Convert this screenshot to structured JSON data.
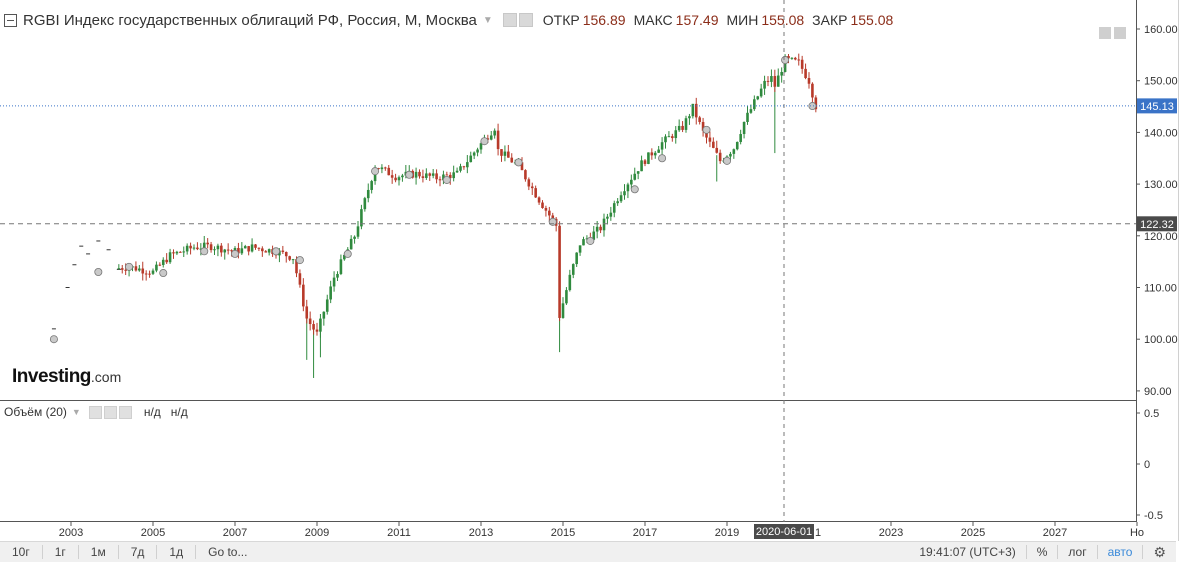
{
  "legend": {
    "title": "RGBI Индекс государственных облигаций РФ, Россия, M, Москва",
    "open_label": "ОТКР",
    "open_value": "156.89",
    "high_label": "МАКС",
    "high_value": "157.49",
    "low_label": "МИН",
    "low_value": "155.08",
    "close_label": "ЗАКР",
    "close_value": "155.08"
  },
  "volume_legend": {
    "title": "Объём (20)",
    "value1": "н/д",
    "value2": "н/д"
  },
  "brand": {
    "name": "Investing",
    "domain": ".com"
  },
  "toolbar": {
    "ranges": [
      "10г",
      "1г",
      "1м",
      "7д",
      "1д"
    ],
    "goto": "Go to...",
    "clock": "19:41:07 (UTC+3)",
    "percent": "%",
    "log": "лог",
    "auto": "авто"
  },
  "colors": {
    "up": "#2f8a3e",
    "down": "#b83a2a",
    "current_line": "#3a73c7",
    "text": "#333333"
  },
  "chart_data": {
    "type": "candlestick",
    "x_ticks": [
      "2003",
      "2005",
      "2007",
      "2009",
      "2011",
      "2013",
      "2015",
      "2017",
      "2019",
      "2021",
      "2023",
      "2025",
      "2027",
      "Но"
    ],
    "y_ticks": [
      "160.00",
      "150.00",
      "140.00",
      "130.00",
      "120.00",
      "110.00",
      "100.00",
      "90.00"
    ],
    "ylim": [
      87,
      162
    ],
    "volume_ticks": [
      "0.5",
      "0",
      "-0.5"
    ],
    "current_price_label": "145.13",
    "crosshair_price_label": "122.32",
    "crosshair_date_label": "2020-06-01",
    "anchors": [
      [
        "2002-08",
        100.0
      ],
      [
        "2002-12",
        103.2
      ],
      [
        "2003-06",
        112.8
      ],
      [
        "2003-12",
        113.5
      ],
      [
        "2004-06",
        114.0
      ],
      [
        "2005-01",
        113.0
      ],
      [
        "2005-06",
        116.2
      ],
      [
        "2006-01",
        117.8
      ],
      [
        "2006-06",
        118.0
      ],
      [
        "2007-01",
        117.0
      ],
      [
        "2007-06",
        117.8
      ],
      [
        "2008-01",
        117.0
      ],
      [
        "2008-06",
        115.8
      ],
      [
        "2008-10",
        104.0
      ],
      [
        "2009-01",
        101.0
      ],
      [
        "2009-06",
        112.0
      ],
      [
        "2009-12",
        120.0
      ],
      [
        "2010-06",
        133.5
      ],
      [
        "2010-12",
        131.5
      ],
      [
        "2011-06",
        132.0
      ],
      [
        "2011-12",
        131.2
      ],
      [
        "2012-06",
        132.0
      ],
      [
        "2012-12",
        137.0
      ],
      [
        "2013-05",
        141.0
      ],
      [
        "2013-06",
        136.5
      ],
      [
        "2013-12",
        133.5
      ],
      [
        "2014-06",
        127.0
      ],
      [
        "2014-11",
        122.0
      ],
      [
        "2014-12",
        104.5
      ],
      [
        "2015-03",
        112.0
      ],
      [
        "2015-06",
        118.5
      ],
      [
        "2015-12",
        121.5
      ],
      [
        "2016-06",
        128.5
      ],
      [
        "2016-12",
        134.0
      ],
      [
        "2017-06",
        138.0
      ],
      [
        "2017-12",
        141.0
      ],
      [
        "2018-03",
        144.8
      ],
      [
        "2018-06",
        140.0
      ],
      [
        "2018-11",
        134.5
      ],
      [
        "2019-03",
        137.0
      ],
      [
        "2019-06",
        142.0
      ],
      [
        "2019-12",
        149.5
      ],
      [
        "2020-02",
        150.5
      ],
      [
        "2020-03",
        149.0
      ],
      [
        "2020-06",
        154.0
      ],
      [
        "2020-10",
        153.5
      ],
      [
        "2021-01",
        150.0
      ],
      [
        "2021-03",
        145.1
      ]
    ],
    "markers": [
      [
        "2002-08",
        100.0
      ],
      [
        "2003-09",
        113.0
      ],
      [
        "2004-06",
        114.0
      ],
      [
        "2005-04",
        112.8
      ],
      [
        "2006-04",
        117.0
      ],
      [
        "2007-01",
        116.5
      ],
      [
        "2008-01",
        117.0
      ],
      [
        "2008-08",
        115.3
      ],
      [
        "2009-10",
        116.5
      ],
      [
        "2010-06",
        132.5
      ],
      [
        "2011-04",
        131.8
      ],
      [
        "2012-03",
        130.8
      ],
      [
        "2013-02",
        138.3
      ],
      [
        "2013-12",
        134.2
      ],
      [
        "2014-10",
        122.7
      ],
      [
        "2015-09",
        119.0
      ],
      [
        "2016-10",
        129.0
      ],
      [
        "2017-06",
        135.0
      ],
      [
        "2018-07",
        140.5
      ],
      [
        "2019-01",
        134.5
      ],
      [
        "2020-06",
        154.0
      ],
      [
        "2021-02",
        145.1
      ]
    ],
    "wicks": [
      [
        "2008-10",
        96.0
      ],
      [
        "2008-12",
        92.5
      ],
      [
        "2009-02",
        96.5
      ],
      [
        "2014-12",
        97.5
      ],
      [
        "2020-03",
        136.0
      ],
      [
        "2018-10",
        130.5
      ]
    ],
    "early_dashes": [
      [
        "2002-08",
        102.0
      ],
      [
        "2002-12",
        110.0
      ],
      [
        "2003-02",
        114.4
      ],
      [
        "2003-04",
        118.0
      ],
      [
        "2003-06",
        116.5
      ],
      [
        "2003-09",
        119.0
      ],
      [
        "2003-12",
        117.3
      ],
      [
        "2004-03",
        113.5
      ]
    ]
  }
}
